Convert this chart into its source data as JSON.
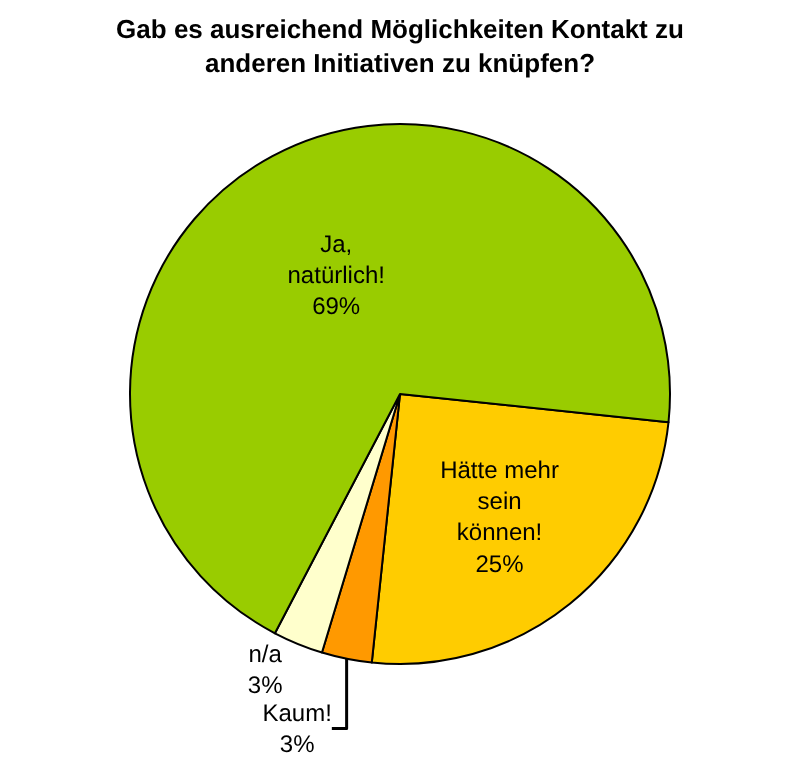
{
  "chart_data": {
    "type": "pie",
    "title": "Gab es ausreichend Möglichkeiten Kontakt zu\nanderen Initiativen zu knüpfen?",
    "categories": [
      "Hätte mehr\nsein\nkönnen!",
      "Kaum!",
      "n/a",
      "Ja,\nnatürlich!"
    ],
    "values": [
      25,
      3,
      3,
      69
    ],
    "value_labels": [
      "25%",
      "3%",
      "3%",
      "69%"
    ],
    "colors": [
      "#ffcc00",
      "#ff9900",
      "#ffffcc",
      "#99cc00"
    ],
    "legend": false
  }
}
